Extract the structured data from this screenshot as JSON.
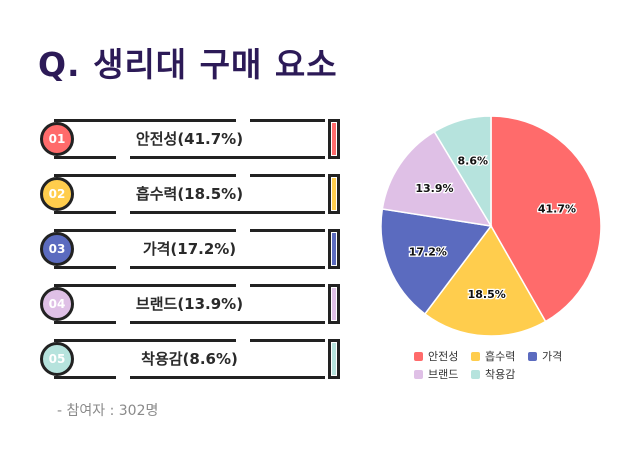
{
  "title": "Q. 생리대 구매 요소",
  "participants": "- 참여자 : 302명",
  "items": [
    {
      "no": "01",
      "label": "안전성(41.7%)",
      "color": "#ff6b6b"
    },
    {
      "no": "02",
      "label": "흡수력(18.5%)",
      "color": "#ffcd4d"
    },
    {
      "no": "03",
      "label": "가격(17.2%)",
      "color": "#5b6bbf"
    },
    {
      "no": "04",
      "label": "브랜드(13.9%)",
      "color": "#dfc0e6"
    },
    {
      "no": "05",
      "label": "착용감(8.6%)",
      "color": "#b6e3dd"
    }
  ],
  "chart_data": {
    "type": "pie",
    "categories": [
      "안전성",
      "흡수력",
      "가격",
      "브랜드",
      "착용감"
    ],
    "values": [
      41.7,
      18.5,
      17.2,
      13.9,
      8.6
    ],
    "data_labels": [
      "41.7%",
      "18.5%",
      "17.2%",
      "13.9%",
      "8.6%"
    ],
    "colors": [
      "#ff6b6b",
      "#ffcd4d",
      "#5b6bbf",
      "#dfc0e6",
      "#b6e3dd"
    ],
    "legend_placement": "bottom"
  }
}
